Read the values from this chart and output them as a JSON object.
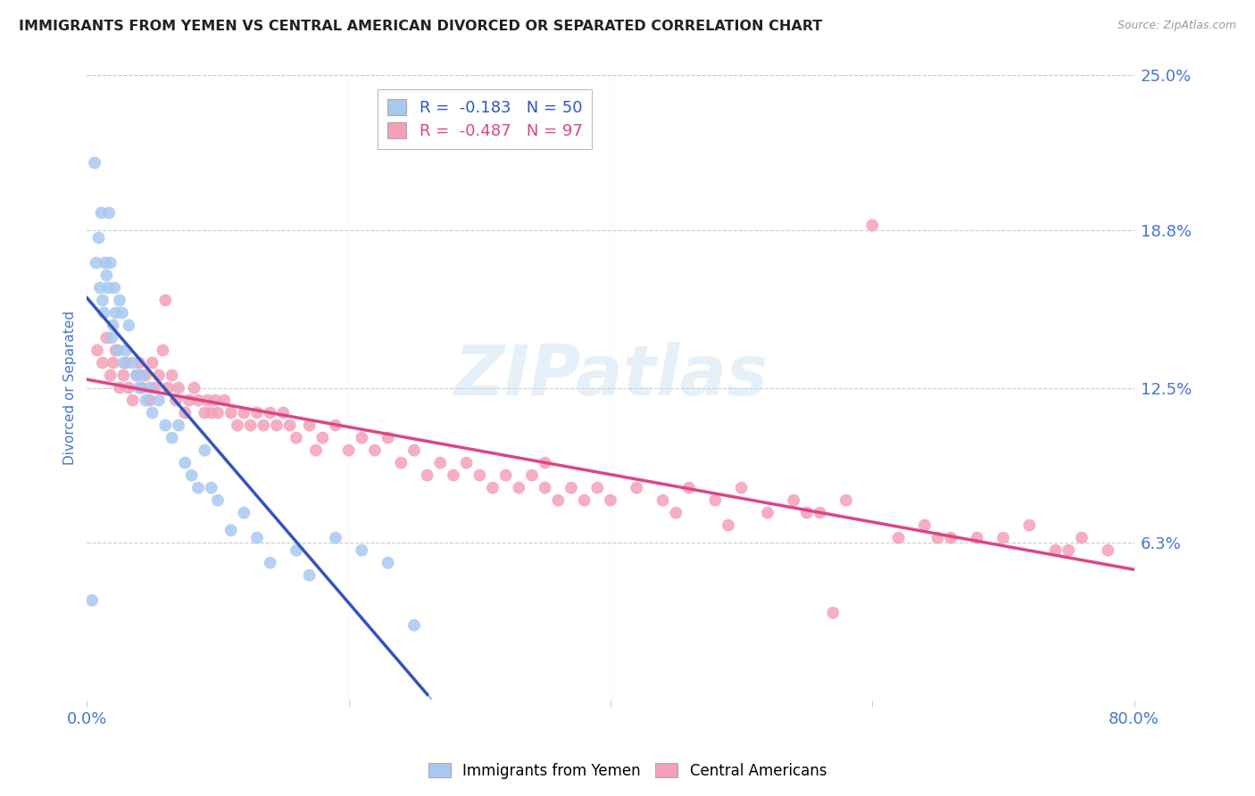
{
  "title": "IMMIGRANTS FROM YEMEN VS CENTRAL AMERICAN DIVORCED OR SEPARATED CORRELATION CHART",
  "source": "Source: ZipAtlas.com",
  "ylabel": "Divorced or Separated",
  "legend_label1": "Immigrants from Yemen",
  "legend_label2": "Central Americans",
  "r1": "-0.183",
  "n1": "50",
  "r2": "-0.487",
  "n2": "97",
  "color1": "#a8c8f0",
  "color2": "#f4a0b8",
  "line_color1": "#3355bb",
  "line_color2": "#dd4488",
  "dashed_line_color": "#99bbdd",
  "background_color": "#ffffff",
  "title_color": "#222222",
  "axis_label_color": "#4477cc",
  "tick_color": "#4477cc",
  "grid_color": "#cccccc",
  "watermark": "ZIPatlas",
  "xmin": 0.0,
  "xmax": 0.8,
  "ymin": 0.0,
  "ymax": 0.25,
  "yemen_x": [
    0.004,
    0.006,
    0.007,
    0.009,
    0.01,
    0.011,
    0.012,
    0.013,
    0.014,
    0.015,
    0.016,
    0.017,
    0.018,
    0.019,
    0.02,
    0.021,
    0.022,
    0.024,
    0.025,
    0.027,
    0.028,
    0.03,
    0.032,
    0.035,
    0.038,
    0.04,
    0.042,
    0.045,
    0.048,
    0.05,
    0.055,
    0.06,
    0.065,
    0.07,
    0.075,
    0.08,
    0.085,
    0.09,
    0.095,
    0.1,
    0.11,
    0.12,
    0.13,
    0.14,
    0.16,
    0.17,
    0.19,
    0.21,
    0.23,
    0.25
  ],
  "yemen_y": [
    0.04,
    0.215,
    0.175,
    0.185,
    0.165,
    0.195,
    0.16,
    0.155,
    0.175,
    0.17,
    0.165,
    0.195,
    0.175,
    0.145,
    0.15,
    0.165,
    0.155,
    0.14,
    0.16,
    0.155,
    0.135,
    0.14,
    0.15,
    0.135,
    0.13,
    0.125,
    0.13,
    0.12,
    0.125,
    0.115,
    0.12,
    0.11,
    0.105,
    0.11,
    0.095,
    0.09,
    0.085,
    0.1,
    0.085,
    0.08,
    0.068,
    0.075,
    0.065,
    0.055,
    0.06,
    0.05,
    0.065,
    0.06,
    0.055,
    0.03
  ],
  "central_x": [
    0.008,
    0.012,
    0.015,
    0.018,
    0.02,
    0.022,
    0.025,
    0.028,
    0.03,
    0.032,
    0.035,
    0.038,
    0.04,
    0.042,
    0.045,
    0.048,
    0.05,
    0.052,
    0.055,
    0.058,
    0.06,
    0.062,
    0.065,
    0.068,
    0.07,
    0.075,
    0.078,
    0.082,
    0.085,
    0.09,
    0.092,
    0.095,
    0.098,
    0.1,
    0.105,
    0.11,
    0.115,
    0.12,
    0.125,
    0.13,
    0.135,
    0.14,
    0.145,
    0.15,
    0.155,
    0.16,
    0.17,
    0.175,
    0.18,
    0.19,
    0.2,
    0.21,
    0.22,
    0.23,
    0.24,
    0.25,
    0.26,
    0.27,
    0.28,
    0.29,
    0.3,
    0.31,
    0.32,
    0.33,
    0.34,
    0.35,
    0.36,
    0.37,
    0.38,
    0.39,
    0.4,
    0.42,
    0.44,
    0.46,
    0.48,
    0.5,
    0.52,
    0.54,
    0.56,
    0.58,
    0.6,
    0.62,
    0.64,
    0.66,
    0.68,
    0.7,
    0.72,
    0.74,
    0.76,
    0.78,
    0.45,
    0.35,
    0.55,
    0.65,
    0.75,
    0.49,
    0.57
  ],
  "central_y": [
    0.14,
    0.135,
    0.145,
    0.13,
    0.135,
    0.14,
    0.125,
    0.13,
    0.135,
    0.125,
    0.12,
    0.13,
    0.135,
    0.125,
    0.13,
    0.12,
    0.135,
    0.125,
    0.13,
    0.14,
    0.16,
    0.125,
    0.13,
    0.12,
    0.125,
    0.115,
    0.12,
    0.125,
    0.12,
    0.115,
    0.12,
    0.115,
    0.12,
    0.115,
    0.12,
    0.115,
    0.11,
    0.115,
    0.11,
    0.115,
    0.11,
    0.115,
    0.11,
    0.115,
    0.11,
    0.105,
    0.11,
    0.1,
    0.105,
    0.11,
    0.1,
    0.105,
    0.1,
    0.105,
    0.095,
    0.1,
    0.09,
    0.095,
    0.09,
    0.095,
    0.09,
    0.085,
    0.09,
    0.085,
    0.09,
    0.085,
    0.08,
    0.085,
    0.08,
    0.085,
    0.08,
    0.085,
    0.08,
    0.085,
    0.08,
    0.085,
    0.075,
    0.08,
    0.075,
    0.08,
    0.19,
    0.065,
    0.07,
    0.065,
    0.065,
    0.065,
    0.07,
    0.06,
    0.065,
    0.06,
    0.075,
    0.095,
    0.075,
    0.065,
    0.06,
    0.07,
    0.035
  ]
}
